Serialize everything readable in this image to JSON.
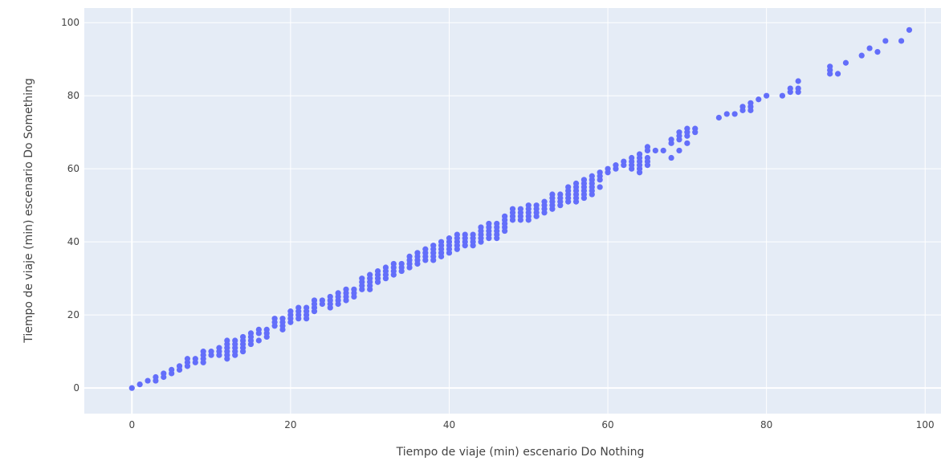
{
  "chart_data": {
    "type": "scatter",
    "title": "",
    "xlabel": "Tiempo de viaje (min) escenario Do Nothing",
    "ylabel": "Tiempo de viaje (min) escenario Do Something",
    "xlim": [
      -6,
      102
    ],
    "ylim": [
      -7,
      104
    ],
    "xticks": [
      0,
      20,
      40,
      60,
      80,
      100
    ],
    "yticks": [
      0,
      20,
      40,
      60,
      80,
      100
    ],
    "grid": true,
    "marker_color": "#636efa",
    "plot_background": "#e5ecf6",
    "series": [
      {
        "points": [
          [
            0,
            0
          ],
          [
            1,
            1
          ],
          [
            2,
            2
          ],
          [
            3,
            2
          ],
          [
            3,
            3
          ],
          [
            4,
            3
          ],
          [
            4,
            4
          ],
          [
            5,
            4
          ],
          [
            5,
            5
          ],
          [
            6,
            5
          ],
          [
            6,
            6
          ],
          [
            7,
            6
          ],
          [
            7,
            7
          ],
          [
            7,
            8
          ],
          [
            8,
            7
          ],
          [
            8,
            8
          ],
          [
            9,
            7
          ],
          [
            9,
            8
          ],
          [
            9,
            9
          ],
          [
            9,
            10
          ],
          [
            10,
            9
          ],
          [
            10,
            10
          ],
          [
            11,
            9
          ],
          [
            11,
            10
          ],
          [
            11,
            11
          ],
          [
            12,
            8
          ],
          [
            12,
            9
          ],
          [
            12,
            10
          ],
          [
            12,
            11
          ],
          [
            12,
            12
          ],
          [
            12,
            13
          ],
          [
            13,
            9
          ],
          [
            13,
            10
          ],
          [
            13,
            11
          ],
          [
            13,
            12
          ],
          [
            13,
            13
          ],
          [
            14,
            10
          ],
          [
            14,
            11
          ],
          [
            14,
            12
          ],
          [
            14,
            13
          ],
          [
            14,
            14
          ],
          [
            15,
            12
          ],
          [
            15,
            13
          ],
          [
            15,
            14
          ],
          [
            15,
            15
          ],
          [
            16,
            13
          ],
          [
            16,
            15
          ],
          [
            16,
            16
          ],
          [
            17,
            14
          ],
          [
            17,
            15
          ],
          [
            17,
            16
          ],
          [
            18,
            17
          ],
          [
            18,
            18
          ],
          [
            18,
            19
          ],
          [
            19,
            16
          ],
          [
            19,
            17
          ],
          [
            19,
            18
          ],
          [
            19,
            19
          ],
          [
            20,
            18
          ],
          [
            20,
            19
          ],
          [
            20,
            20
          ],
          [
            20,
            21
          ],
          [
            21,
            19
          ],
          [
            21,
            20
          ],
          [
            21,
            21
          ],
          [
            21,
            22
          ],
          [
            22,
            19
          ],
          [
            22,
            20
          ],
          [
            22,
            21
          ],
          [
            22,
            22
          ],
          [
            23,
            21
          ],
          [
            23,
            22
          ],
          [
            23,
            23
          ],
          [
            23,
            24
          ],
          [
            24,
            23
          ],
          [
            24,
            24
          ],
          [
            25,
            22
          ],
          [
            25,
            23
          ],
          [
            25,
            24
          ],
          [
            25,
            25
          ],
          [
            26,
            23
          ],
          [
            26,
            24
          ],
          [
            26,
            25
          ],
          [
            26,
            26
          ],
          [
            27,
            24
          ],
          [
            27,
            25
          ],
          [
            27,
            26
          ],
          [
            27,
            27
          ],
          [
            28,
            25
          ],
          [
            28,
            26
          ],
          [
            28,
            27
          ],
          [
            29,
            27
          ],
          [
            29,
            28
          ],
          [
            29,
            29
          ],
          [
            29,
            30
          ],
          [
            30,
            27
          ],
          [
            30,
            28
          ],
          [
            30,
            29
          ],
          [
            30,
            30
          ],
          [
            30,
            31
          ],
          [
            31,
            29
          ],
          [
            31,
            30
          ],
          [
            31,
            31
          ],
          [
            31,
            32
          ],
          [
            32,
            30
          ],
          [
            32,
            31
          ],
          [
            32,
            32
          ],
          [
            32,
            33
          ],
          [
            33,
            31
          ],
          [
            33,
            32
          ],
          [
            33,
            33
          ],
          [
            33,
            34
          ],
          [
            34,
            32
          ],
          [
            34,
            33
          ],
          [
            34,
            34
          ],
          [
            35,
            33
          ],
          [
            35,
            34
          ],
          [
            35,
            35
          ],
          [
            35,
            36
          ],
          [
            36,
            34
          ],
          [
            36,
            35
          ],
          [
            36,
            36
          ],
          [
            36,
            37
          ],
          [
            37,
            35
          ],
          [
            37,
            36
          ],
          [
            37,
            37
          ],
          [
            37,
            38
          ],
          [
            38,
            35
          ],
          [
            38,
            36
          ],
          [
            38,
            37
          ],
          [
            38,
            38
          ],
          [
            38,
            39
          ],
          [
            39,
            36
          ],
          [
            39,
            37
          ],
          [
            39,
            38
          ],
          [
            39,
            39
          ],
          [
            39,
            40
          ],
          [
            40,
            37
          ],
          [
            40,
            38
          ],
          [
            40,
            39
          ],
          [
            40,
            40
          ],
          [
            40,
            41
          ],
          [
            41,
            38
          ],
          [
            41,
            39
          ],
          [
            41,
            40
          ],
          [
            41,
            41
          ],
          [
            41,
            42
          ],
          [
            42,
            39
          ],
          [
            42,
            40
          ],
          [
            42,
            41
          ],
          [
            42,
            42
          ],
          [
            43,
            39
          ],
          [
            43,
            40
          ],
          [
            43,
            41
          ],
          [
            43,
            42
          ],
          [
            44,
            40
          ],
          [
            44,
            41
          ],
          [
            44,
            42
          ],
          [
            44,
            43
          ],
          [
            44,
            44
          ],
          [
            45,
            41
          ],
          [
            45,
            42
          ],
          [
            45,
            43
          ],
          [
            45,
            44
          ],
          [
            45,
            45
          ],
          [
            46,
            41
          ],
          [
            46,
            42
          ],
          [
            46,
            43
          ],
          [
            46,
            44
          ],
          [
            46,
            45
          ],
          [
            47,
            43
          ],
          [
            47,
            44
          ],
          [
            47,
            45
          ],
          [
            47,
            46
          ],
          [
            47,
            47
          ],
          [
            48,
            46
          ],
          [
            48,
            47
          ],
          [
            48,
            48
          ],
          [
            48,
            49
          ],
          [
            49,
            46
          ],
          [
            49,
            47
          ],
          [
            49,
            48
          ],
          [
            49,
            49
          ],
          [
            50,
            46
          ],
          [
            50,
            47
          ],
          [
            50,
            48
          ],
          [
            50,
            49
          ],
          [
            50,
            50
          ],
          [
            51,
            47
          ],
          [
            51,
            48
          ],
          [
            51,
            49
          ],
          [
            51,
            50
          ],
          [
            52,
            48
          ],
          [
            52,
            49
          ],
          [
            52,
            50
          ],
          [
            52,
            51
          ],
          [
            53,
            49
          ],
          [
            53,
            50
          ],
          [
            53,
            51
          ],
          [
            53,
            52
          ],
          [
            53,
            53
          ],
          [
            54,
            50
          ],
          [
            54,
            51
          ],
          [
            54,
            52
          ],
          [
            54,
            53
          ],
          [
            55,
            51
          ],
          [
            55,
            52
          ],
          [
            55,
            53
          ],
          [
            55,
            54
          ],
          [
            55,
            55
          ],
          [
            56,
            51
          ],
          [
            56,
            52
          ],
          [
            56,
            53
          ],
          [
            56,
            54
          ],
          [
            56,
            55
          ],
          [
            56,
            56
          ],
          [
            57,
            52
          ],
          [
            57,
            53
          ],
          [
            57,
            54
          ],
          [
            57,
            55
          ],
          [
            57,
            56
          ],
          [
            57,
            57
          ],
          [
            58,
            53
          ],
          [
            58,
            54
          ],
          [
            58,
            55
          ],
          [
            58,
            56
          ],
          [
            58,
            57
          ],
          [
            58,
            58
          ],
          [
            59,
            55
          ],
          [
            59,
            57
          ],
          [
            59,
            58
          ],
          [
            59,
            59
          ],
          [
            60,
            59
          ],
          [
            60,
            60
          ],
          [
            61,
            60
          ],
          [
            61,
            61
          ],
          [
            62,
            61
          ],
          [
            62,
            62
          ],
          [
            63,
            60
          ],
          [
            63,
            61
          ],
          [
            63,
            62
          ],
          [
            63,
            63
          ],
          [
            64,
            59
          ],
          [
            64,
            60
          ],
          [
            64,
            61
          ],
          [
            64,
            62
          ],
          [
            64,
            63
          ],
          [
            64,
            64
          ],
          [
            65,
            61
          ],
          [
            65,
            62
          ],
          [
            65,
            63
          ],
          [
            65,
            65
          ],
          [
            65,
            66
          ],
          [
            66,
            65
          ],
          [
            67,
            65
          ],
          [
            68,
            63
          ],
          [
            68,
            67
          ],
          [
            68,
            68
          ],
          [
            69,
            65
          ],
          [
            69,
            68
          ],
          [
            69,
            69
          ],
          [
            69,
            70
          ],
          [
            70,
            67
          ],
          [
            70,
            69
          ],
          [
            70,
            70
          ],
          [
            70,
            71
          ],
          [
            71,
            70
          ],
          [
            71,
            71
          ],
          [
            74,
            74
          ],
          [
            75,
            75
          ],
          [
            76,
            75
          ],
          [
            77,
            76
          ],
          [
            77,
            77
          ],
          [
            78,
            76
          ],
          [
            78,
            77
          ],
          [
            78,
            78
          ],
          [
            79,
            79
          ],
          [
            80,
            80
          ],
          [
            82,
            80
          ],
          [
            83,
            81
          ],
          [
            83,
            82
          ],
          [
            84,
            81
          ],
          [
            84,
            82
          ],
          [
            84,
            84
          ],
          [
            88,
            86
          ],
          [
            88,
            87
          ],
          [
            88,
            88
          ],
          [
            89,
            86
          ],
          [
            90,
            89
          ],
          [
            92,
            91
          ],
          [
            93,
            93
          ],
          [
            94,
            92
          ],
          [
            95,
            95
          ],
          [
            97,
            95
          ],
          [
            98,
            98
          ]
        ]
      }
    ]
  }
}
